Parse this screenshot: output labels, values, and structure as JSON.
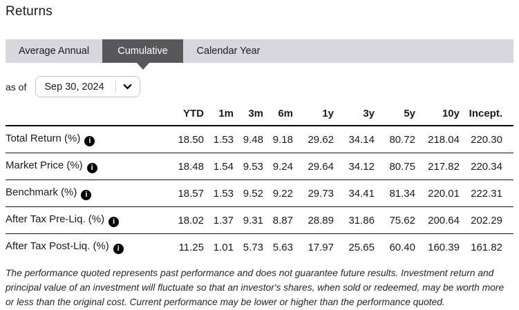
{
  "page": {
    "title": "Returns"
  },
  "tabs": [
    {
      "label": "Average Annual",
      "active": false
    },
    {
      "label": "Cumulative",
      "active": true
    },
    {
      "label": "Calendar Year",
      "active": false
    }
  ],
  "as_of": {
    "label": "as of",
    "value": "Sep 30, 2024"
  },
  "icons": {
    "info": "i",
    "chevron": "chevron-down"
  },
  "table": {
    "columns": [
      "YTD",
      "1m",
      "3m",
      "6m",
      "1y",
      "3y",
      "5y",
      "10y",
      "Incept."
    ],
    "rows": [
      {
        "label": "Total Return (%)",
        "values": [
          "18.50",
          "1.53",
          "9.48",
          "9.18",
          "29.62",
          "34.14",
          "80.72",
          "218.04",
          "220.30"
        ]
      },
      {
        "label": "Market Price (%)",
        "values": [
          "18.48",
          "1.54",
          "9.53",
          "9.24",
          "29.64",
          "34.12",
          "80.75",
          "217.82",
          "220.34"
        ]
      },
      {
        "label": "Benchmark (%)",
        "values": [
          "18.57",
          "1.53",
          "9.52",
          "9.22",
          "29.73",
          "34.41",
          "81.34",
          "220.01",
          "222.31"
        ]
      },
      {
        "label": "After Tax Pre-Liq. (%)",
        "values": [
          "18.02",
          "1.37",
          "9.31",
          "8.87",
          "28.89",
          "31.86",
          "75.62",
          "200.64",
          "202.29"
        ]
      },
      {
        "label": "After Tax Post-Liq. (%)",
        "values": [
          "11.25",
          "1.01",
          "5.73",
          "5.63",
          "17.97",
          "25.65",
          "60.40",
          "160.39",
          "161.82"
        ]
      }
    ]
  },
  "disclaimer": "The performance quoted represents past performance and does not guarantee future results. Investment return and principal value of an investment will fluctuate so that an investor's shares, when sold or redeemed, may be worth more or less than the original cost. Current performance may be lower or higher than the performance quoted.",
  "colors": {
    "tabbar_bg": "#d7d7de",
    "tab_active_bg": "#58585a",
    "tab_active_text": "#ffffff",
    "text": "#1a1a1a",
    "table_rule": "#000000"
  }
}
